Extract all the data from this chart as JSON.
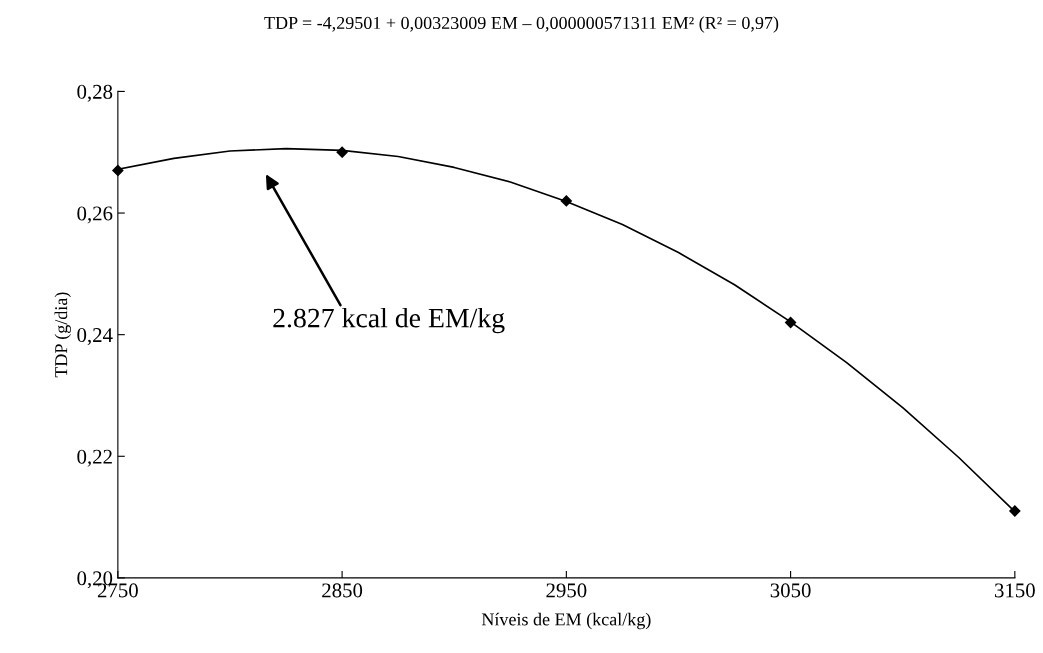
{
  "chart_data": {
    "type": "scatter",
    "title": "TDP = -4,29501 + 0,00323009 EM – 0,000000571311 EM² (R² = 0,97)",
    "xlabel": "Níveis de EM (kcal/kg)",
    "ylabel": "TDP (g/dia)",
    "x": [
      2750,
      2850,
      2950,
      3050,
      3150
    ],
    "series": [
      {
        "type": "line",
        "color": "#000000",
        "marker": "none",
        "x": [
          2750,
          2775,
          2800,
          2825,
          2850,
          2875,
          2900,
          2925,
          2950,
          2975,
          3000,
          3025,
          3050,
          3075,
          3100,
          3125,
          3150
        ],
        "values": [
          0.2672,
          0.269,
          0.2702,
          0.2706,
          0.2703,
          0.2693,
          0.2675,
          0.2651,
          0.2619,
          0.2581,
          0.2535,
          0.2482,
          0.2421,
          0.2354,
          0.228,
          0.2198,
          0.2109
        ]
      },
      {
        "color": "#000000",
        "values": [
          0.267,
          0.27,
          0.262,
          0.242,
          0.211
        ]
      }
    ],
    "xlim": [
      2750,
      3150
    ],
    "xticks": [
      2750,
      2850,
      2950,
      3050,
      3150
    ],
    "ylim": [
      0.2,
      0.28
    ],
    "yticks": [
      {
        "value": 0.2,
        "label": "0,20"
      },
      {
        "value": 0.22,
        "label": "0,22"
      },
      {
        "value": 0.24,
        "label": "0,24"
      },
      {
        "value": 0.26,
        "label": "0,26"
      },
      {
        "value": 0.28,
        "label": "0,28"
      }
    ],
    "annotations": [
      "2.827 kcal de EM/kg"
    ],
    "marker": "diamond",
    "line_style": "solid",
    "grid": false,
    "legend": false
  }
}
